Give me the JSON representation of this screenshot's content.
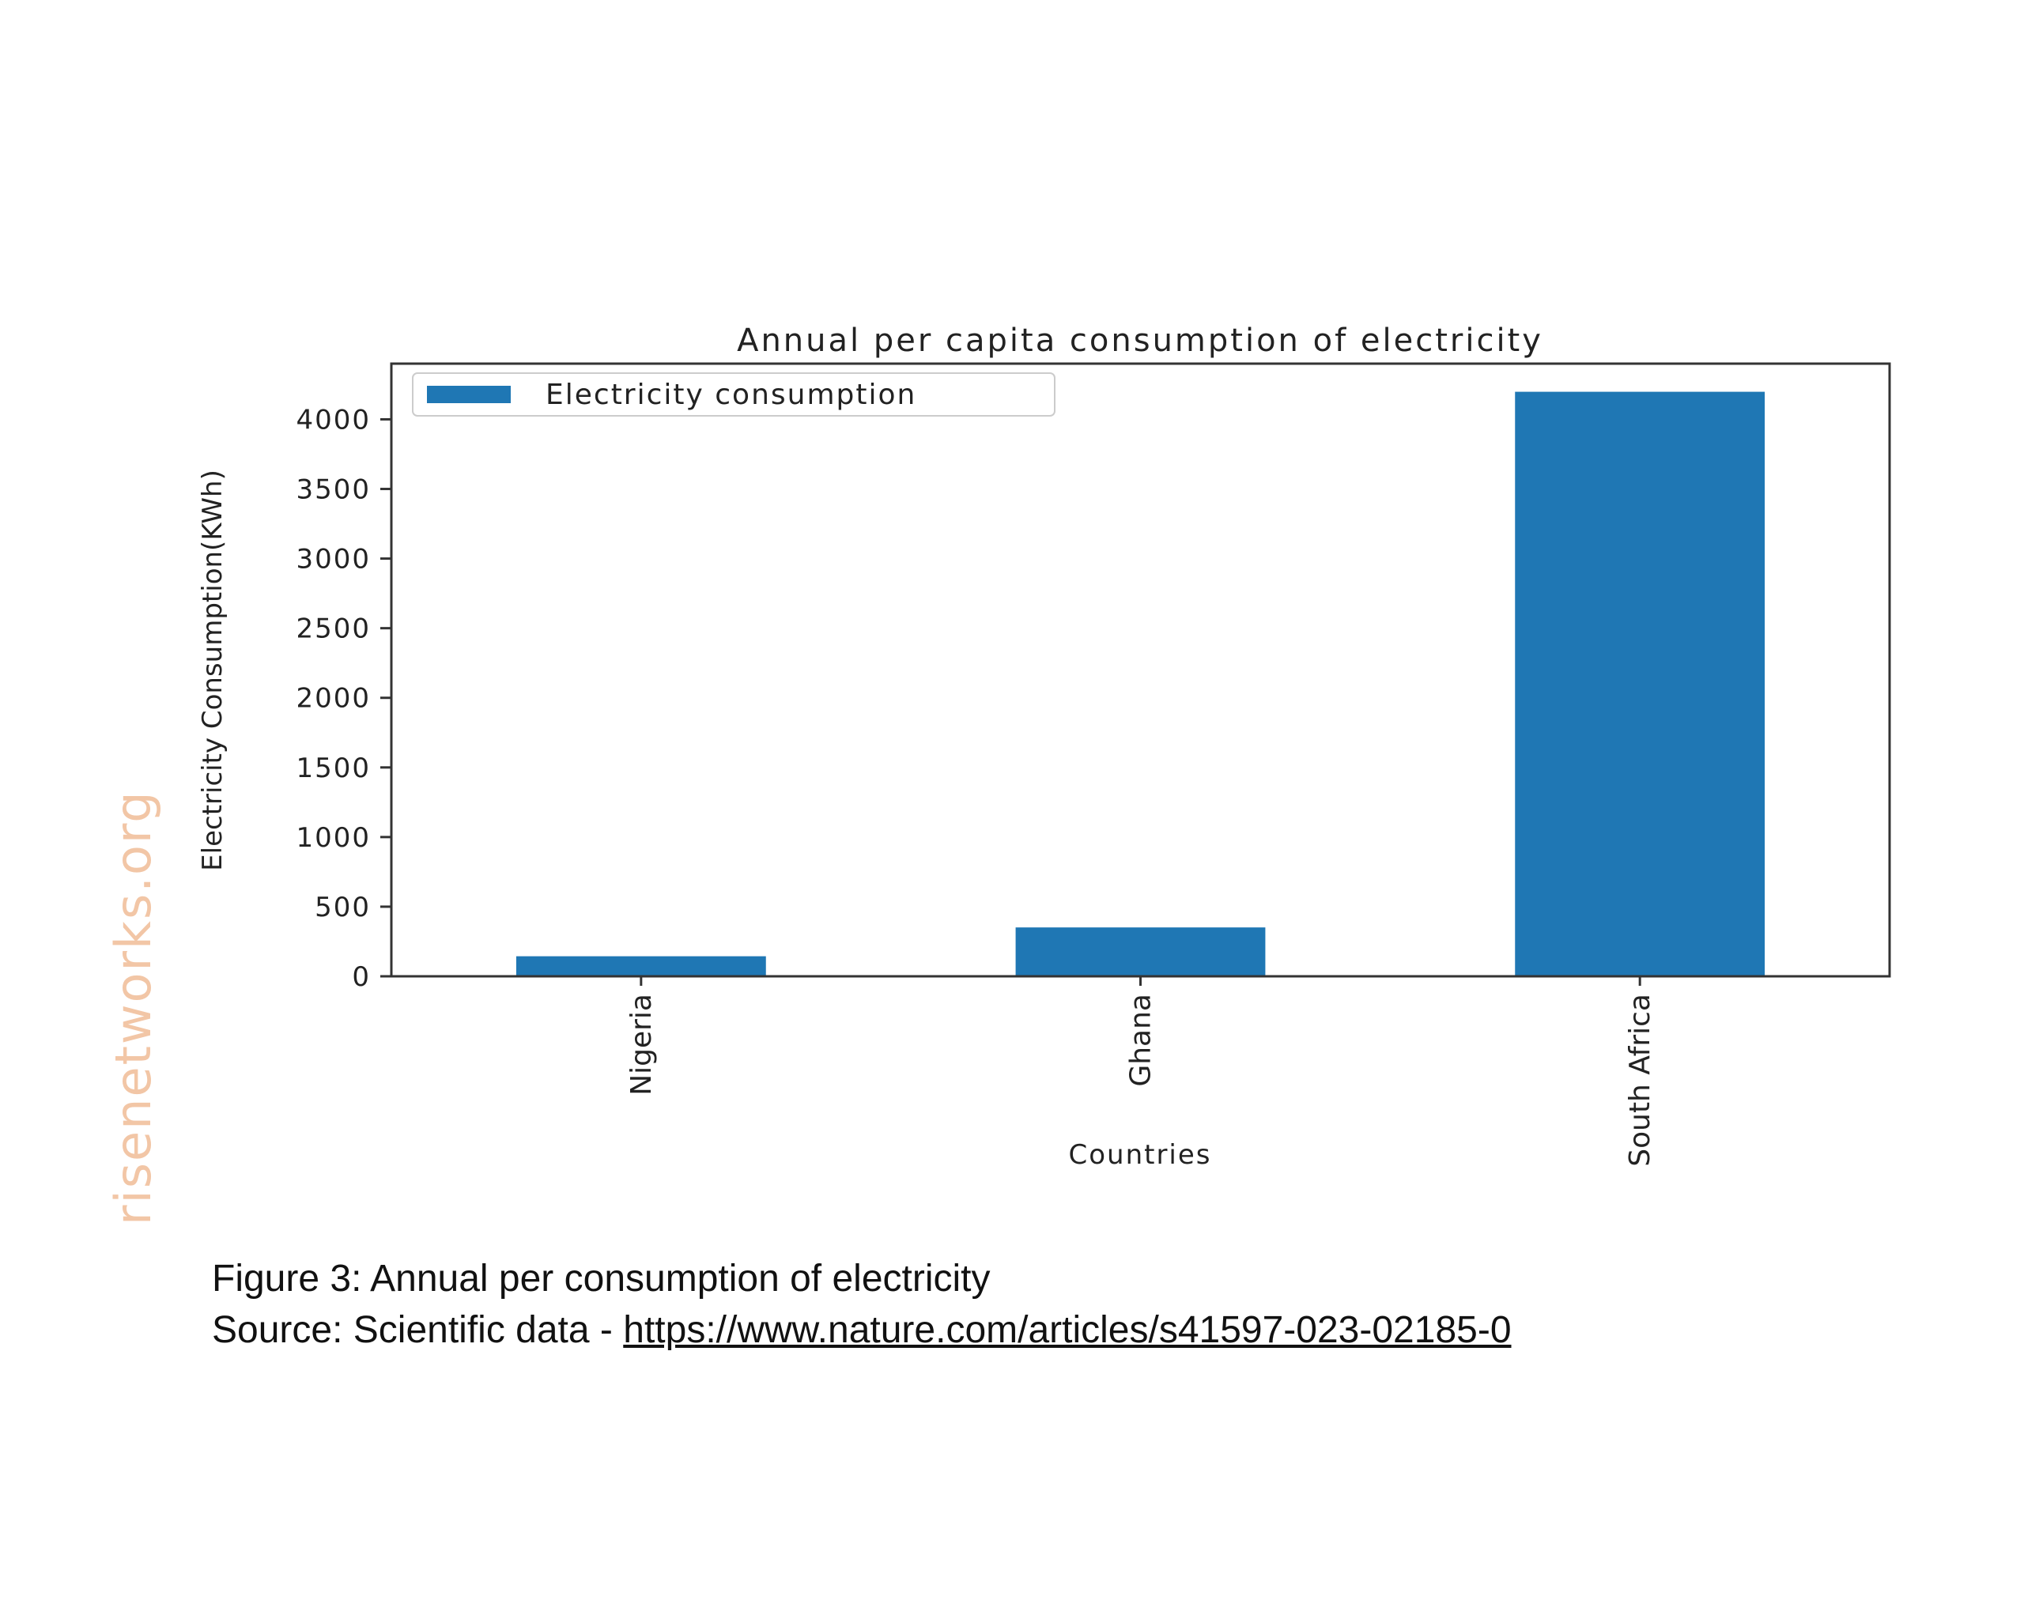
{
  "watermark": "risenetworks.org",
  "caption": {
    "figure_text": "Figure 3: Annual per consumption of electricity",
    "source_prefix": "Source: Scientific data - ",
    "source_link": "https://www.nature.com/articles/s41597-023-02185-0"
  },
  "chart_data": {
    "type": "bar",
    "title": "Annual per capita consumption of electricity",
    "xlabel": "Countries",
    "ylabel": "Electricity Consumption(KWh)",
    "categories": [
      "Nigeria",
      "Ghana",
      "South Africa"
    ],
    "series": [
      {
        "name": "Electricity consumption",
        "values": [
          144,
          351,
          4198
        ],
        "color": "#1f77b4"
      }
    ],
    "yticks": [
      0,
      500,
      1000,
      1500,
      2000,
      2500,
      3000,
      3500,
      4000
    ],
    "ylim": [
      0,
      4400
    ],
    "grid": false,
    "legend_position": "top-left",
    "x_tick_rotation": "vertical"
  }
}
